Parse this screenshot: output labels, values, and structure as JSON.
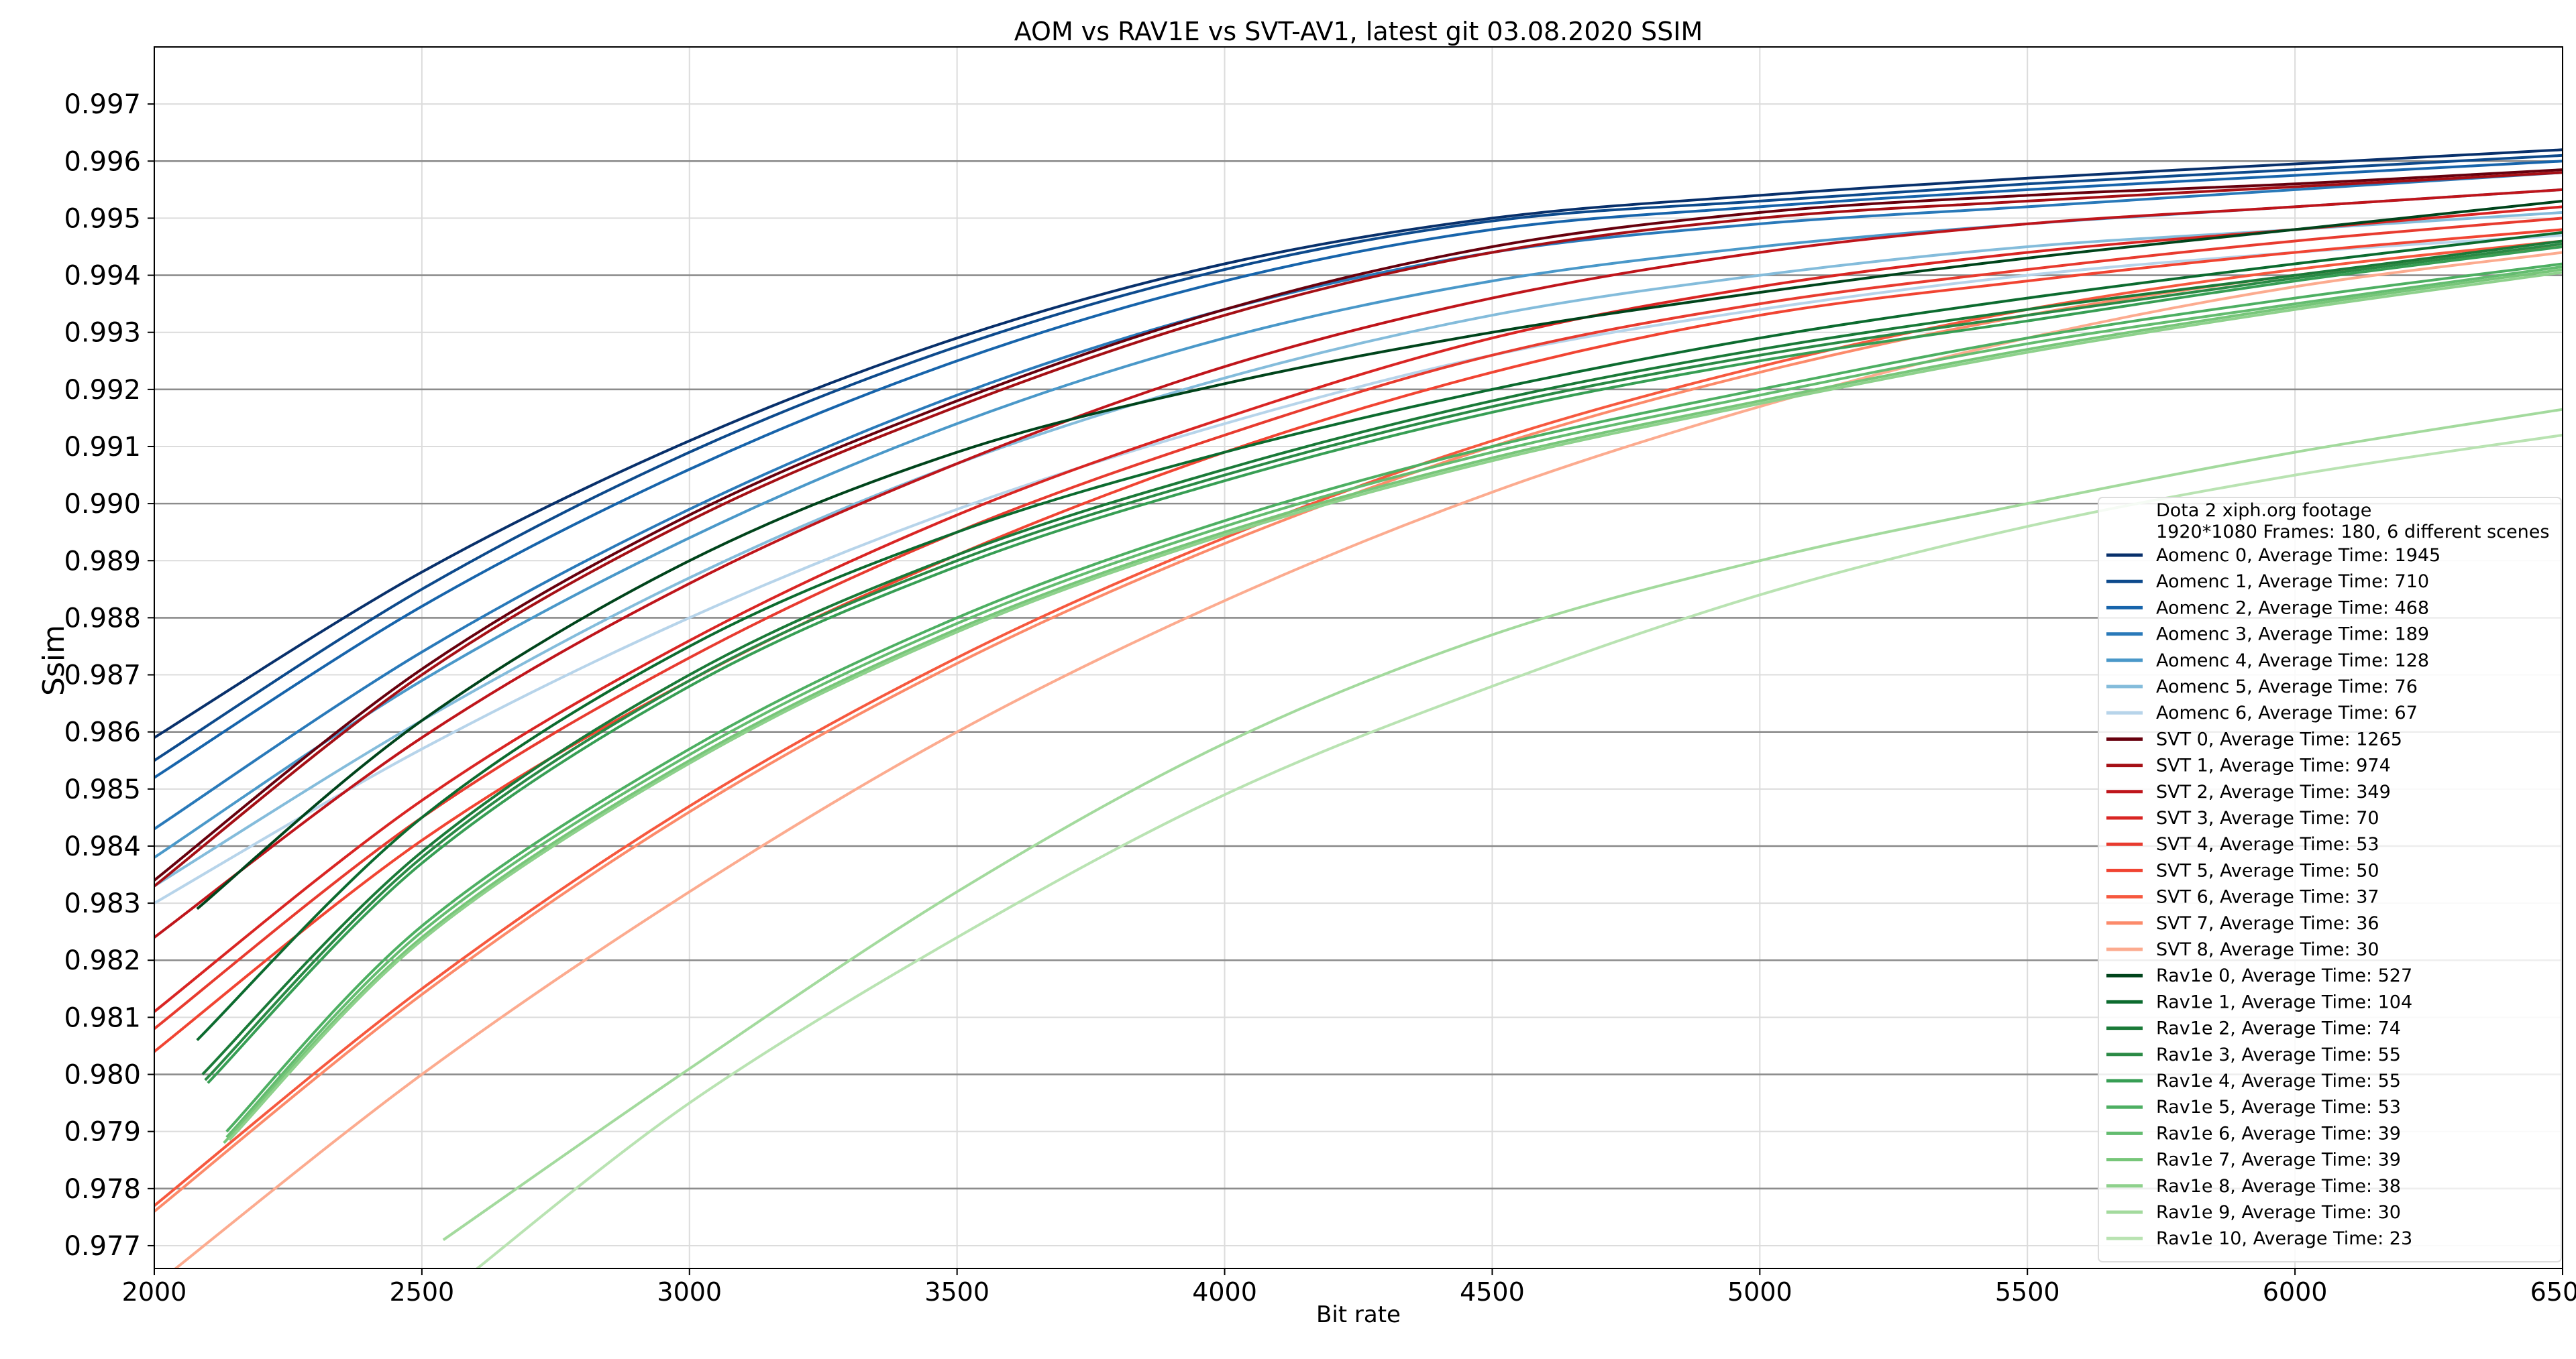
{
  "chart_data": {
    "type": "line",
    "title": "AOM vs RAV1E vs SVT-AV1, latest git 03.08.2020 SSIM",
    "xlabel": "Bit rate",
    "ylabel": "Ssim",
    "xlim": [
      2000,
      6500
    ],
    "ylim": [
      0.9766,
      0.998
    ],
    "xticks": [
      "2000",
      "2500",
      "3000",
      "3500",
      "4000",
      "4500",
      "5000",
      "5500",
      "6000",
      "6500"
    ],
    "yticks": [
      "0.977",
      "0.978",
      "0.979",
      "0.980",
      "0.981",
      "0.982",
      "0.983",
      "0.984",
      "0.985",
      "0.986",
      "0.987",
      "0.988",
      "0.989",
      "0.990",
      "0.991",
      "0.992",
      "0.993",
      "0.994",
      "0.995",
      "0.996",
      "0.997"
    ],
    "grid": true,
    "legend": {
      "position": "right",
      "title_lines": [
        "Dota 2 xiph.org footage",
        " 1920*1080 Frames: 180, 6 different scenes"
      ]
    },
    "series": [
      {
        "name": "Aomenc 0, Average Time: 1945",
        "color": "#08306b",
        "x": [
          2000,
          2500,
          3000,
          3500,
          4000,
          4500,
          5000,
          5500,
          6000,
          6500
        ],
        "y": [
          0.9859,
          0.9888,
          0.9911,
          0.9929,
          0.9942,
          0.995,
          0.9954,
          0.9957,
          0.99595,
          0.9962
        ]
      },
      {
        "name": "Aomenc 1, Average Time: 710",
        "color": "#0d4a8c",
        "x": [
          2000,
          2500,
          3000,
          3500,
          4000,
          4500,
          5000,
          5500,
          6000,
          6500
        ],
        "y": [
          0.9855,
          0.9885,
          0.9909,
          0.99275,
          0.9941,
          0.99495,
          0.9953,
          0.9956,
          0.99585,
          0.9961
        ]
      },
      {
        "name": "Aomenc 2, Average Time: 468",
        "color": "#1764ab",
        "x": [
          2000,
          2500,
          3000,
          3500,
          4000,
          4500,
          5000,
          5500,
          6000,
          6500
        ],
        "y": [
          0.9852,
          0.9882,
          0.9906,
          0.9925,
          0.9939,
          0.9948,
          0.9952,
          0.9955,
          0.99575,
          0.996
        ]
      },
      {
        "name": "Aomenc 3, Average Time: 189",
        "color": "#2979b9",
        "x": [
          2000,
          2500,
          3000,
          3500,
          4000,
          4500,
          5000,
          5500,
          6000,
          6500
        ],
        "y": [
          0.9843,
          0.9874,
          0.9899,
          0.9919,
          0.9934,
          0.9944,
          0.9949,
          0.9952,
          0.9955,
          0.9958
        ]
      },
      {
        "name": "Aomenc 4, Average Time: 128",
        "color": "#4a98c9",
        "x": [
          2000,
          2500,
          3000,
          3500,
          4000,
          4500,
          5000,
          5500,
          6000,
          6500
        ],
        "y": [
          0.9838,
          0.9869,
          0.9894,
          0.9914,
          0.9929,
          0.9939,
          0.9945,
          0.9949,
          0.9952,
          0.9955
        ]
      },
      {
        "name": "Aomenc 5, Average Time: 76",
        "color": "#84bcdb",
        "x": [
          2000,
          2500,
          3000,
          3500,
          4000,
          4500,
          5000,
          5500,
          6000,
          6500
        ],
        "y": [
          0.9833,
          0.9862,
          0.9887,
          0.9907,
          0.9922,
          0.9933,
          0.994,
          0.9945,
          0.9948,
          0.9951
        ]
      },
      {
        "name": "Aomenc 6, Average Time: 67",
        "color": "#b7d4ea",
        "x": [
          2000,
          2500,
          3000,
          3500,
          4000,
          4500,
          5000,
          5500,
          6000,
          6500
        ],
        "y": [
          0.983,
          0.9857,
          0.988,
          0.9899,
          0.9914,
          0.9926,
          0.9934,
          0.994,
          0.9944,
          0.9947
        ]
      },
      {
        "name": "SVT 0, Average Time: 1265",
        "color": "#67000d",
        "x": [
          2000,
          2500,
          3000,
          3500,
          4000,
          4500,
          5000,
          5500,
          6000,
          6500
        ],
        "y": [
          0.9834,
          0.9871,
          0.9898,
          0.9918,
          0.9934,
          0.9945,
          0.9951,
          0.9954,
          0.9956,
          0.99585
        ]
      },
      {
        "name": "SVT 1, Average Time: 974",
        "color": "#a50f15",
        "x": [
          2000,
          2500,
          3000,
          3500,
          4000,
          4500,
          5000,
          5500,
          6000,
          6500
        ],
        "y": [
          0.9833,
          0.987,
          0.9897,
          0.9917,
          0.9933,
          0.9944,
          0.995,
          0.9953,
          0.99555,
          0.9958
        ]
      },
      {
        "name": "SVT 2, Average Time: 349",
        "color": "#bf151b",
        "x": [
          2000,
          2500,
          3000,
          3500,
          4000,
          4500,
          5000,
          5500,
          6000,
          6500
        ],
        "y": [
          0.9824,
          0.9859,
          0.9886,
          0.9907,
          0.9924,
          0.9936,
          0.9944,
          0.9949,
          0.9952,
          0.9955
        ]
      },
      {
        "name": "SVT 3, Average Time: 70",
        "color": "#d92523",
        "x": [
          2000,
          2500,
          3000,
          3500,
          4000,
          4500,
          5000,
          5500,
          6000,
          6500
        ],
        "y": [
          0.9811,
          0.9848,
          0.9876,
          0.9898,
          0.9915,
          0.9929,
          0.9938,
          0.9944,
          0.9948,
          0.9952
        ]
      },
      {
        "name": "SVT 4, Average Time: 53",
        "color": "#e83b2f",
        "x": [
          2000,
          2500,
          3000,
          3500,
          4000,
          4500,
          5000,
          5500,
          6000,
          6500
        ],
        "y": [
          0.9808,
          0.9845,
          0.9873,
          0.9895,
          0.9912,
          0.9926,
          0.9935,
          0.9941,
          0.9946,
          0.995
        ]
      },
      {
        "name": "SVT 5, Average Time: 50",
        "color": "#f14432",
        "x": [
          2000,
          2500,
          3000,
          3500,
          4000,
          4500,
          5000,
          5500,
          6000,
          6500
        ],
        "y": [
          0.9804,
          0.9841,
          0.9869,
          0.9891,
          0.9909,
          0.9923,
          0.9933,
          0.9939,
          0.9944,
          0.9948
        ]
      },
      {
        "name": "SVT 6, Average Time: 37",
        "color": "#f6583e",
        "x": [
          2000,
          2500,
          3000,
          3500,
          4000,
          4500,
          5000,
          5500,
          6000,
          6500
        ],
        "y": [
          0.9777,
          0.9815,
          0.9847,
          0.9873,
          0.9894,
          0.9911,
          0.9924,
          0.9934,
          0.9941,
          0.9946
        ]
      },
      {
        "name": "SVT 7, Average Time: 36",
        "color": "#fc8a6a",
        "x": [
          2000,
          2500,
          3000,
          3500,
          4000,
          4500,
          5000,
          5500,
          6000,
          6500
        ],
        "y": [
          0.9776,
          0.9814,
          0.9846,
          0.9872,
          0.9893,
          0.991,
          0.9923,
          0.9933,
          0.994,
          0.9945
        ]
      },
      {
        "name": "SVT 8, Average Time: 30",
        "color": "#fcab8f",
        "x": [
          2000,
          2500,
          3000,
          3500,
          4000,
          4500,
          5000,
          5500,
          6000,
          6500
        ],
        "y": [
          0.9763,
          0.98,
          0.9832,
          0.986,
          0.9883,
          0.9902,
          0.9917,
          0.9929,
          0.9938,
          0.9944
        ]
      },
      {
        "name": "Rav1e 0, Average Time: 527",
        "color": "#00441b",
        "x": [
          2080,
          2500,
          3000,
          3500,
          4000,
          4500,
          5000,
          5500,
          6000,
          6500
        ],
        "y": [
          0.9829,
          0.9862,
          0.989,
          0.9909,
          0.9921,
          0.993,
          0.9937,
          0.9943,
          0.9948,
          0.9953
        ]
      },
      {
        "name": "Rav1e 1, Average Time: 104",
        "color": "#0c6b2f",
        "x": [
          2080,
          2500,
          3000,
          3500,
          4000,
          4500,
          5000,
          5500,
          6000,
          6500
        ],
        "y": [
          0.9806,
          0.9845,
          0.9875,
          0.9895,
          0.9909,
          0.992,
          0.9929,
          0.9936,
          0.9942,
          0.99475
        ]
      },
      {
        "name": "Rav1e 2, Average Time: 74",
        "color": "#1a7a38",
        "x": [
          2090,
          2500,
          3000,
          3500,
          4000,
          4500,
          5000,
          5500,
          6000,
          6500
        ],
        "y": [
          0.98,
          0.9839,
          0.987,
          0.9891,
          0.9906,
          0.9918,
          0.9927,
          0.9934,
          0.994,
          0.9946
        ]
      },
      {
        "name": "Rav1e 3, Average Time: 55",
        "color": "#2a8a45",
        "x": [
          2095,
          2500,
          3000,
          3500,
          4000,
          4500,
          5000,
          5500,
          6000,
          6500
        ],
        "y": [
          0.9799,
          0.9838,
          0.9869,
          0.989,
          0.9905,
          0.9917,
          0.9926,
          0.9933,
          0.99395,
          0.99455
        ]
      },
      {
        "name": "Rav1e 4, Average Time: 55",
        "color": "#379e54",
        "x": [
          2100,
          2500,
          3000,
          3500,
          4000,
          4500,
          5000,
          5500,
          6000,
          6500
        ],
        "y": [
          0.97985,
          0.9837,
          0.9868,
          0.9889,
          0.9904,
          0.9916,
          0.9925,
          0.9932,
          0.9939,
          0.9945
        ]
      },
      {
        "name": "Rav1e 5, Average Time: 53",
        "color": "#4daf62",
        "x": [
          2135,
          2500,
          3000,
          3500,
          4000,
          4500,
          5000,
          5500,
          6000,
          6500
        ],
        "y": [
          0.979,
          0.9826,
          0.9857,
          0.988,
          0.9897,
          0.991,
          0.992,
          0.9929,
          0.9936,
          0.9942
        ]
      },
      {
        "name": "Rav1e 6, Average Time: 39",
        "color": "#63bc6f",
        "x": [
          2135,
          2500,
          3000,
          3500,
          4000,
          4500,
          5000,
          5500,
          6000,
          6500
        ],
        "y": [
          0.9789,
          0.9825,
          0.9856,
          0.9879,
          0.9896,
          0.9909,
          0.9919,
          0.9928,
          0.9935,
          0.99415
        ]
      },
      {
        "name": "Rav1e 7, Average Time: 39",
        "color": "#77c679",
        "x": [
          2130,
          2500,
          3000,
          3500,
          4000,
          4500,
          5000,
          5500,
          6000,
          6500
        ],
        "y": [
          0.9788,
          0.9824,
          0.9855,
          0.9878,
          0.9895,
          0.9908,
          0.9918,
          0.9927,
          0.99345,
          0.9941
        ]
      },
      {
        "name": "Rav1e 8, Average Time: 38",
        "color": "#8ed18c",
        "x": [
          2140,
          2500,
          3000,
          3500,
          4000,
          4500,
          5000,
          5500,
          6000,
          6500
        ],
        "y": [
          0.97885,
          0.98235,
          0.98545,
          0.98775,
          0.98945,
          0.99075,
          0.99175,
          0.99265,
          0.9934,
          0.99405
        ]
      },
      {
        "name": "Rav1e 9, Average Time: 30",
        "color": "#a3da9d",
        "x": [
          2540,
          3000,
          3500,
          4000,
          4500,
          5000,
          5500,
          6000,
          6500
        ],
        "y": [
          0.9771,
          0.9801,
          0.9832,
          0.9858,
          0.9877,
          0.989,
          0.99,
          0.9909,
          0.99165
        ]
      },
      {
        "name": "Rav1e 10, Average Time: 23",
        "color": "#b9e3b2",
        "x": [
          2590,
          3000,
          3500,
          4000,
          4500,
          5000,
          5500,
          6000,
          6500
        ],
        "y": [
          0.9765,
          0.9795,
          0.9824,
          0.9849,
          0.9868,
          0.9884,
          0.9896,
          0.9905,
          0.9912
        ]
      }
    ]
  }
}
